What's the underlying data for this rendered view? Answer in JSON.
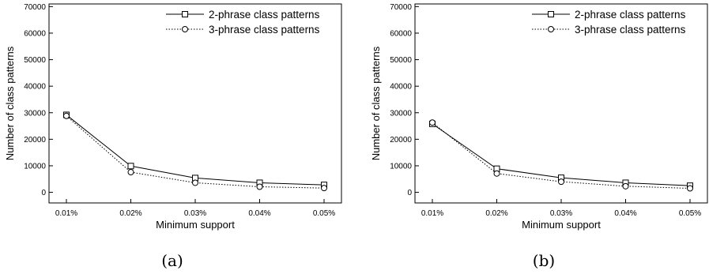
{
  "chart_data": [
    {
      "type": "line",
      "caption": "(a)",
      "xlabel": "Minimum support",
      "ylabel": "Number of class patterns",
      "categories": [
        "0.01%",
        "0.02%",
        "0.03%",
        "0.04%",
        "0.05%"
      ],
      "yticks": [
        "0",
        "10000",
        "20000",
        "30000",
        "40000",
        "50000",
        "60000",
        "70000"
      ],
      "ylim": [
        -4000,
        71000
      ],
      "grid": false,
      "legend_position": "top-right",
      "series": [
        {
          "name": "2-phrase class patterns",
          "marker": "square",
          "line": "solid",
          "values": [
            29200,
            9900,
            5400,
            3600,
            2800
          ]
        },
        {
          "name": "3-phrase class patterns",
          "marker": "circle",
          "line": "dotted",
          "values": [
            28800,
            7600,
            3600,
            2100,
            1600
          ]
        }
      ]
    },
    {
      "type": "line",
      "caption": "(b)",
      "xlabel": "Minimum support",
      "ylabel": "Number of class patterns",
      "categories": [
        "0.01%",
        "0.02%",
        "0.03%",
        "0.04%",
        "0.05%"
      ],
      "yticks": [
        "0",
        "10000",
        "20000",
        "30000",
        "40000",
        "50000",
        "60000",
        "70000"
      ],
      "ylim": [
        -4000,
        71000
      ],
      "grid": false,
      "legend_position": "top-right",
      "series": [
        {
          "name": "2-phrase class patterns",
          "marker": "square",
          "line": "solid",
          "values": [
            25800,
            8900,
            5500,
            3600,
            2500
          ]
        },
        {
          "name": "3-phrase class patterns",
          "marker": "circle",
          "line": "dotted",
          "values": [
            26300,
            7100,
            4000,
            2300,
            1500
          ]
        }
      ]
    }
  ]
}
